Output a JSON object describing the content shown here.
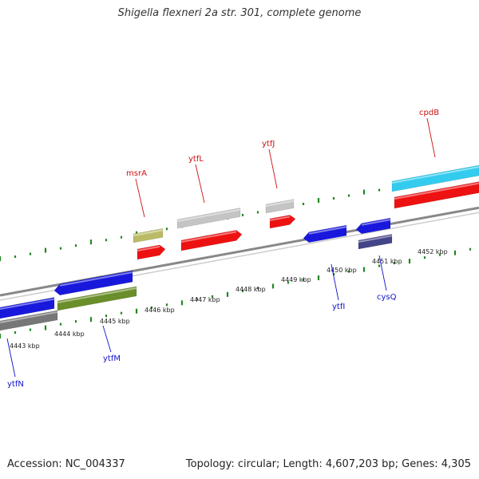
{
  "title": "Shigella flexneri 2a str. 301, complete genome",
  "footer": {
    "accession": "Accession: NC_004337",
    "topology": "Topology: circular; Length: 4,607,203 bp; Genes: 4,305"
  },
  "colors": {
    "forward_label": "#cc1111",
    "reverse_label": "#1111cc",
    "tick": "#228822",
    "backbone": "#888888"
  },
  "ruler_labels": [
    "4443 kbp",
    "4444 kbp",
    "4445 kbp",
    "4446 kbp",
    "4447 kbp",
    "4448 kbp",
    "4449 kbp",
    "4450 kbp",
    "4451 kbp",
    "4452 kbp"
  ],
  "gene_labels": [
    {
      "text": "msrA",
      "strand": "forward"
    },
    {
      "text": "ytfL",
      "strand": "forward"
    },
    {
      "text": "ytfJ",
      "strand": "forward"
    },
    {
      "text": "cpdB",
      "strand": "forward"
    },
    {
      "text": "ytfN",
      "strand": "reverse"
    },
    {
      "text": "ytfM",
      "strand": "reverse"
    },
    {
      "text": "ytfI",
      "strand": "reverse"
    },
    {
      "text": "cysQ",
      "strand": "reverse"
    }
  ],
  "features": [
    {
      "name": "cds-forward-1",
      "color": "#ee1111",
      "strand": "forward"
    },
    {
      "name": "cds-forward-2",
      "color": "#ee1111",
      "strand": "forward"
    },
    {
      "name": "cds-forward-3",
      "color": "#ee1111",
      "strand": "forward"
    },
    {
      "name": "cds-forward-4",
      "color": "#ee1111",
      "strand": "forward"
    },
    {
      "name": "gene-forward-msrA",
      "color": "#bbbb66",
      "strand": "forward"
    },
    {
      "name": "gene-forward-ytfL",
      "color": "#c4c4c4",
      "strand": "forward"
    },
    {
      "name": "gene-forward-ytfJ",
      "color": "#c4c4c4",
      "strand": "forward"
    },
    {
      "name": "gene-forward-cpdB",
      "color": "#33ccee",
      "strand": "forward"
    },
    {
      "name": "cds-reverse-1",
      "color": "#1818dd",
      "strand": "reverse"
    },
    {
      "name": "cds-reverse-2",
      "color": "#1818dd",
      "strand": "reverse"
    },
    {
      "name": "cds-reverse-3",
      "color": "#1818dd",
      "strand": "reverse"
    },
    {
      "name": "cds-reverse-4",
      "color": "#1818dd",
      "strand": "reverse"
    },
    {
      "name": "gene-reverse-ytfN",
      "color": "#777777",
      "strand": "reverse"
    },
    {
      "name": "gene-reverse-ytfM",
      "color": "#6a8e2a",
      "strand": "reverse"
    },
    {
      "name": "gene-reverse-cysQ",
      "color": "#444488",
      "strand": "reverse"
    }
  ]
}
